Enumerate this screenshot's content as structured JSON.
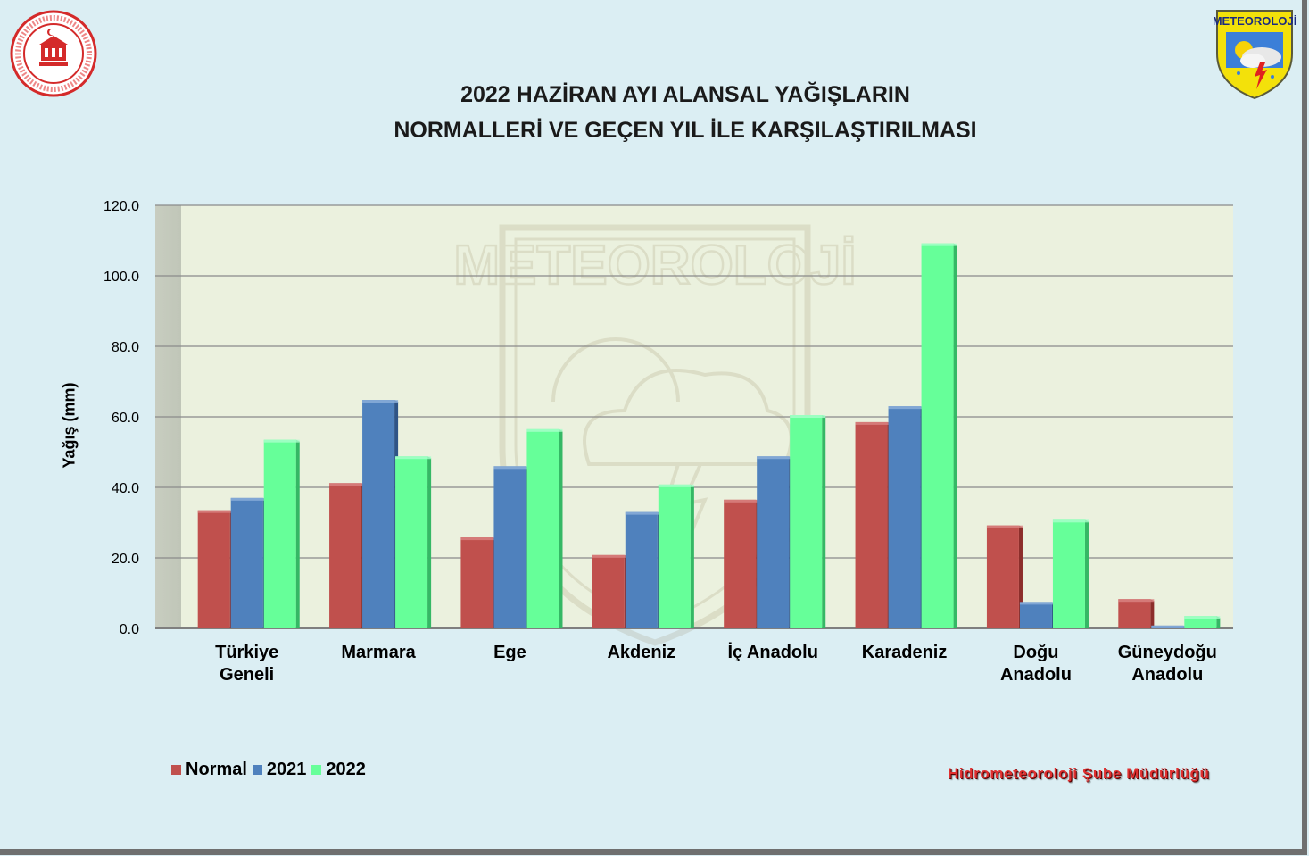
{
  "title": {
    "line1": "2022 HAZİRAN AYI ALANSAL YAĞIŞLARIN",
    "line2": "NORMALLERİ VE GEÇEN YIL İLE KARŞILAŞTIRILMASI"
  },
  "logos": {
    "left": "ministry-seal",
    "right_text": "METEOROLOJİ",
    "watermark_text": "METEOROLOJİ"
  },
  "footer": "Hidrometeoroloji Şube Müdürlüğü",
  "colors": {
    "Normal": "#c0504d",
    "2021": "#4f81bd",
    "2022": "#66ff99",
    "plot_bg": "#ebf1de",
    "page_bg": "#dbeef3"
  },
  "chart_data": {
    "type": "bar",
    "title": "2022 HAZİRAN AYI ALANSAL YAĞIŞLARIN NORMALLERİ VE GEÇEN YIL İLE KARŞILAŞTIRILMASI",
    "ylabel": "Yağış (mm)",
    "xlabel": "",
    "ylim": [
      0,
      120
    ],
    "yticks": [
      "0.0",
      "20.0",
      "40.0",
      "60.0",
      "80.0",
      "100.0",
      "120.0"
    ],
    "grid": true,
    "legend_position": "bottom-left",
    "categories": [
      [
        "Türkiye",
        "Geneli"
      ],
      [
        "Marmara"
      ],
      [
        "Ege"
      ],
      [
        "Akdeniz"
      ],
      [
        "İç Anadolu"
      ],
      [
        "Karadeniz"
      ],
      [
        "Doğu",
        "Anadolu"
      ],
      [
        "Güneydoğu",
        "Anadolu"
      ]
    ],
    "series": [
      {
        "name": "Normal",
        "values": [
          33.5,
          41.2,
          25.8,
          20.8,
          36.5,
          58.5,
          29.2,
          8.3
        ]
      },
      {
        "name": "2021",
        "values": [
          37.0,
          64.8,
          46.0,
          33.0,
          48.8,
          63.0,
          7.5,
          0.8
        ]
      },
      {
        "name": "2022",
        "values": [
          53.5,
          48.8,
          56.5,
          40.8,
          60.5,
          109.2,
          30.8,
          3.5
        ]
      }
    ]
  }
}
